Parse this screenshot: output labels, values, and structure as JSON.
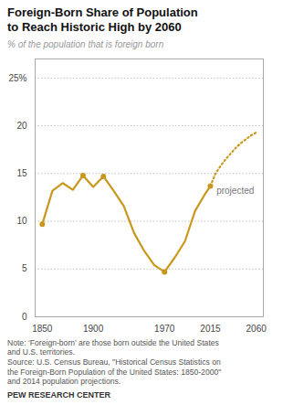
{
  "chart_data": {
    "type": "line",
    "title": "Foreign-Born Share of Population\nto Reach Historic High by 2060",
    "subtitle": "% of the population that is foreign born",
    "notes": [
      "Note: ‘Foreign-born’ are those born outside the United States",
      "and U.S. territories.",
      "Source: U.S. Census Bureau, \"Historical Census Statistics on",
      "the Foreign-Born Population of the United States: 1850-2000\"",
      "and 2014 population projections."
    ],
    "source": "PEW RESEARCH CENTER",
    "series": [
      {
        "type": "line",
        "line_style": "solid",
        "color": "#C9971C",
        "x": [
          1850,
          1860,
          1870,
          1880,
          1890,
          1900,
          1910,
          1920,
          1930,
          1940,
          1950,
          1960,
          1970,
          1980,
          1990,
          2000,
          2010,
          2015
        ],
        "values": [
          9.7,
          13.2,
          14.0,
          13.3,
          14.8,
          13.6,
          14.7,
          13.2,
          11.6,
          8.8,
          6.9,
          5.4,
          4.7,
          6.2,
          7.9,
          11.1,
          12.9,
          13.7
        ]
      },
      {
        "type": "line",
        "line_style": "dotted",
        "color": "#C9971C",
        "x": [
          2015,
          2020,
          2025,
          2030,
          2035,
          2040,
          2045,
          2050,
          2055,
          2060
        ],
        "values": [
          13.7,
          15.0,
          15.8,
          16.5,
          17.1,
          17.7,
          18.2,
          18.6,
          19.0,
          19.3
        ]
      },
      {
        "type": "scatter",
        "marker": "circle",
        "color": "#C9971C",
        "x": [
          1850,
          1890,
          1910,
          1970,
          2015
        ],
        "values": [
          9.7,
          14.8,
          14.7,
          4.7,
          13.7
        ]
      }
    ],
    "annotations": [
      {
        "text": "projected",
        "x": 2021,
        "y": 13.2
      }
    ],
    "xlim": [
      1843,
      2067
    ],
    "ylim": [
      0,
      27
    ],
    "xticks": [
      1850,
      1900,
      1970,
      2015,
      2060
    ],
    "yticks": [
      0,
      5,
      10,
      15,
      20,
      {
        "value": 25,
        "label": "25%"
      }
    ],
    "grid": true
  }
}
